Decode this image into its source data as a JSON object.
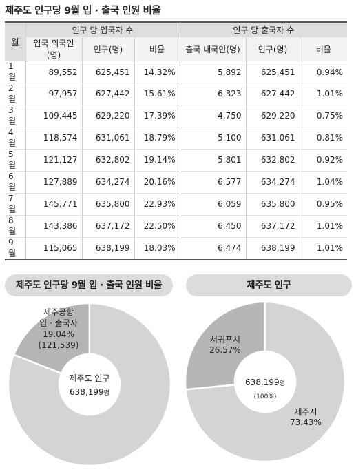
{
  "title": "제주도 인구당 9월 입 · 출국 인원 비율",
  "table": {
    "header_month": "월",
    "group_in": "인구 당 입국자 수",
    "group_out": "인구 당 출국자 수",
    "sub_in": [
      "입국 외국인(명)",
      "인구(명)",
      "비율"
    ],
    "sub_out": [
      "출국 내국인(명)",
      "인구(명)",
      "비율"
    ]
  },
  "chart_data": [
    {
      "type": "table",
      "title": "제주도 인구당 9월 입 · 출국 인원 비율",
      "columns": [
        "월",
        "입국 외국인(명)",
        "인구(명)",
        "비율",
        "출국 내국인(명)",
        "인구(명)",
        "비율"
      ],
      "rows": [
        [
          "1월",
          "89,552",
          "625,451",
          "14.32%",
          "5,892",
          "625,451",
          "0.94%"
        ],
        [
          "2월",
          "97,957",
          "627,442",
          "15.61%",
          "6,323",
          "627,442",
          "1.01%"
        ],
        [
          "3월",
          "109,445",
          "629,220",
          "17.39%",
          "4,750",
          "629,220",
          "0.75%"
        ],
        [
          "4월",
          "118,574",
          "631,061",
          "18.79%",
          "5,100",
          "631,061",
          "0.81%"
        ],
        [
          "5월",
          "121,127",
          "632,802",
          "19.14%",
          "5,801",
          "632,802",
          "0.92%"
        ],
        [
          "6월",
          "127,889",
          "634,274",
          "20.16%",
          "6,577",
          "634,274",
          "1.04%"
        ],
        [
          "7월",
          "145,771",
          "635,800",
          "22.93%",
          "6,059",
          "635,800",
          "0.95%"
        ],
        [
          "8월",
          "143,386",
          "637,172",
          "22.50%",
          "6,450",
          "637,172",
          "1.01%"
        ],
        [
          "9월",
          "115,065",
          "638,199",
          "18.03%",
          "6,474",
          "638,199",
          "1.01%"
        ]
      ]
    },
    {
      "type": "pie",
      "title": "제주도 인구당 9월 입 · 출국 인원 비율",
      "center_label": [
        "제주도 인구",
        "638,199",
        "명"
      ],
      "slices": [
        {
          "label_lines": [
            "제주공항",
            "입 · 출국자",
            "19.04%",
            "(121,539)"
          ],
          "value": 19.04,
          "color": "#b5b5b5"
        },
        {
          "label_lines": [],
          "value": 80.96,
          "color": "#d4d4d4"
        }
      ]
    },
    {
      "type": "pie",
      "title": "제주도 인구",
      "center_label": [
        "638,199",
        "명",
        "(100%)"
      ],
      "slices": [
        {
          "label_lines": [
            "서귀포시",
            "26.57%"
          ],
          "value": 26.57,
          "color": "#b5b5b5"
        },
        {
          "label_lines": [
            "제주시",
            "73.43%"
          ],
          "value": 73.43,
          "color": "#d4d4d4"
        }
      ]
    }
  ]
}
